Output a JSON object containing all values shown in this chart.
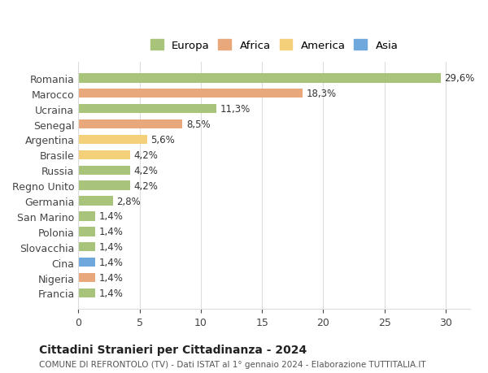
{
  "categories": [
    "Francia",
    "Nigeria",
    "Cina",
    "Slovacchia",
    "Polonia",
    "San Marino",
    "Germania",
    "Regno Unito",
    "Russia",
    "Brasile",
    "Argentina",
    "Senegal",
    "Ucraina",
    "Marocco",
    "Romania"
  ],
  "values": [
    1.4,
    1.4,
    1.4,
    1.4,
    1.4,
    1.4,
    2.8,
    4.2,
    4.2,
    4.2,
    5.6,
    8.5,
    11.3,
    18.3,
    29.6
  ],
  "colors": [
    "#a8c47a",
    "#e8a87c",
    "#6fa8dc",
    "#a8c47a",
    "#a8c47a",
    "#a8c47a",
    "#a8c47a",
    "#a8c47a",
    "#a8c47a",
    "#f4d07a",
    "#f4d07a",
    "#e8a87c",
    "#a8c47a",
    "#e8a87c",
    "#a8c47a"
  ],
  "labels": [
    "1,4%",
    "1,4%",
    "1,4%",
    "1,4%",
    "1,4%",
    "1,4%",
    "2,8%",
    "4,2%",
    "4,2%",
    "4,2%",
    "5,6%",
    "8,5%",
    "11,3%",
    "18,3%",
    "29,6%"
  ],
  "legend": [
    {
      "label": "Europa",
      "color": "#a8c47a"
    },
    {
      "label": "Africa",
      "color": "#e8a87c"
    },
    {
      "label": "America",
      "color": "#f4d07a"
    },
    {
      "label": "Asia",
      "color": "#6fa8dc"
    }
  ],
  "title": "Cittadini Stranieri per Cittadinanza - 2024",
  "subtitle": "COMUNE DI REFRONTOLO (TV) - Dati ISTAT al 1° gennaio 2024 - Elaborazione TUTTITALIA.IT",
  "xlim": [
    0,
    32
  ],
  "xticks": [
    0,
    5,
    10,
    15,
    20,
    25,
    30
  ],
  "background_color": "#ffffff",
  "grid_color": "#dddddd",
  "bar_height": 0.6,
  "figsize": [
    6.0,
    4.6
  ],
  "dpi": 100
}
